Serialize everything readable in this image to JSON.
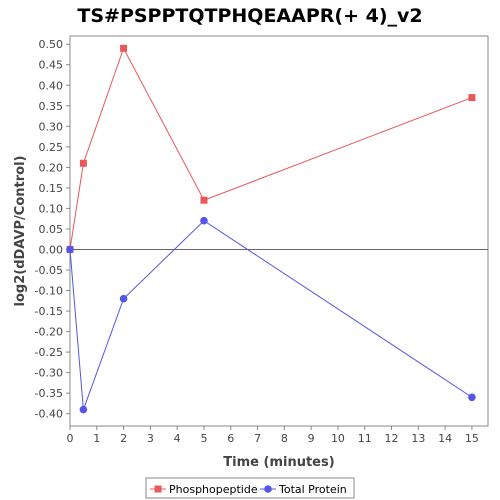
{
  "chart_data": {
    "type": "line",
    "title": "TS#PSPPTQTPHQEAAPR(+ 4)_v2",
    "xlabel": "Time (minutes)",
    "ylabel": "log2(dDAVP/Control)",
    "xlim": [
      0,
      15.6
    ],
    "ylim": [
      -0.43,
      0.52
    ],
    "x_ticks": [
      0,
      1,
      2,
      3,
      4,
      5,
      6,
      7,
      8,
      9,
      10,
      11,
      12,
      13,
      14,
      15
    ],
    "y_ticks": [
      -0.4,
      -0.35,
      -0.3,
      -0.25,
      -0.2,
      -0.15,
      -0.1,
      -0.05,
      0.0,
      0.05,
      0.1,
      0.15,
      0.2,
      0.25,
      0.3,
      0.35,
      0.4,
      0.45,
      0.5
    ],
    "grid": false,
    "legend_position": "bottom",
    "series": [
      {
        "name": "Phosphopeptide",
        "color": "#e8585a",
        "marker": "square",
        "x": [
          0,
          0.5,
          2,
          5,
          15
        ],
        "y": [
          0.0,
          0.21,
          0.49,
          0.12,
          0.37
        ]
      },
      {
        "name": "Total Protein",
        "color": "#5555e8",
        "marker": "circle",
        "x": [
          0,
          0.5,
          2,
          5,
          15
        ],
        "y": [
          0.0,
          -0.39,
          -0.12,
          0.07,
          -0.36
        ]
      }
    ]
  }
}
